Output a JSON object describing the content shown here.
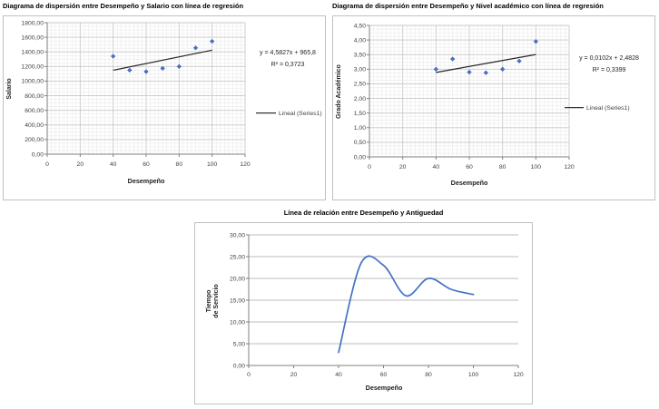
{
  "page": {
    "background": "#FFFFFF"
  },
  "colors": {
    "marker_blue": "#4472C4",
    "series_blue": "#4472C4",
    "trendline": "#262626",
    "frame_border": "#C0C0C0",
    "grid_minor": "#EAEAEA",
    "grid_major": "#C8C8C8",
    "grid_line_chart": "#A9A9A9",
    "axis_line": "#808080",
    "tick_label": "#3F3F3F",
    "title": "#000000"
  },
  "chart_data": [
    {
      "type": "scatter",
      "title": "Diagrama de dispersión entre Desempeño y Salario con línea de regresión",
      "xlabel": "Desempeño",
      "ylabel": "Salario",
      "xlim": [
        0,
        120
      ],
      "ylim": [
        0,
        1800
      ],
      "x_major": 20,
      "y_major": 200,
      "x_minor": 2.5,
      "y_minor": 50,
      "x_tick_labels": [
        "0",
        "20",
        "40",
        "60",
        "80",
        "100",
        "120"
      ],
      "y_tick_labels": [
        "0,00",
        "200,00",
        "400,00",
        "600,00",
        "800,00",
        "1000,00",
        "1200,00",
        "1400,00",
        "1600,00",
        "1800,00"
      ],
      "points": [
        [
          40,
          1340
        ],
        [
          50,
          1150
        ],
        [
          60,
          1130
        ],
        [
          70,
          1175
        ],
        [
          80,
          1200
        ],
        [
          90,
          1455
        ],
        [
          100,
          1545
        ]
      ],
      "trendline": {
        "slope": 4.5827,
        "intercept": 965.8,
        "x_start": 40,
        "x_end": 100
      },
      "equation": "y = 4,5827x + 965,8",
      "r_squared": "R² = 0,3723",
      "legend": "Lineal (Series1)",
      "grid": "fine",
      "legend_position": "right"
    },
    {
      "type": "scatter",
      "title": "Diagrama de dispersión entre Desempeño y Nivel académico con línea de regresión",
      "xlabel": "Desempeño",
      "ylabel": "Grado Académico",
      "xlim": [
        0,
        120
      ],
      "ylim": [
        0,
        4.5
      ],
      "x_major": 20,
      "y_major": 0.5,
      "x_minor": 2.5,
      "y_minor": 0.125,
      "x_tick_labels": [
        "0",
        "20",
        "40",
        "60",
        "80",
        "100",
        "120"
      ],
      "y_tick_labels": [
        "0,00",
        "0,50",
        "1,00",
        "1,50",
        "2,00",
        "2,50",
        "3,00",
        "3,50",
        "4,00",
        "4,50"
      ],
      "points": [
        [
          40,
          3.0
        ],
        [
          50,
          3.35
        ],
        [
          60,
          2.9
        ],
        [
          70,
          2.88
        ],
        [
          80,
          3.0
        ],
        [
          90,
          3.28
        ],
        [
          100,
          3.95
        ]
      ],
      "trendline": {
        "slope": 0.0102,
        "intercept": 2.4828,
        "x_start": 40,
        "x_end": 100
      },
      "equation": "y = 0,0102x + 2,4828",
      "r_squared": "R² = 0,3399",
      "legend": "Lineal (Series1)",
      "grid": "fine",
      "legend_position": "right"
    },
    {
      "type": "line",
      "title": "Línea de relación entre Desempeño y Antiguedad",
      "xlabel": "Desempeño",
      "ylabel": "Tiempo de Servicio",
      "ylabel_lines": [
        "Tiempo",
        "de Servicio"
      ],
      "xlim": [
        0,
        120
      ],
      "ylim": [
        0,
        30
      ],
      "x_major": 20,
      "y_major": 5,
      "x_tick_labels": [
        "0",
        "20",
        "40",
        "60",
        "80",
        "100",
        "120"
      ],
      "y_tick_labels": [
        "0,00",
        "5,00",
        "10,00",
        "15,00",
        "20,00",
        "25,00",
        "30,00"
      ],
      "points": [
        [
          40,
          3
        ],
        [
          50,
          23.5
        ],
        [
          60,
          23
        ],
        [
          70,
          16
        ],
        [
          80,
          20
        ],
        [
          90,
          17.5
        ],
        [
          100,
          16.3
        ]
      ],
      "smooth": true,
      "grid": "horizontal"
    }
  ]
}
